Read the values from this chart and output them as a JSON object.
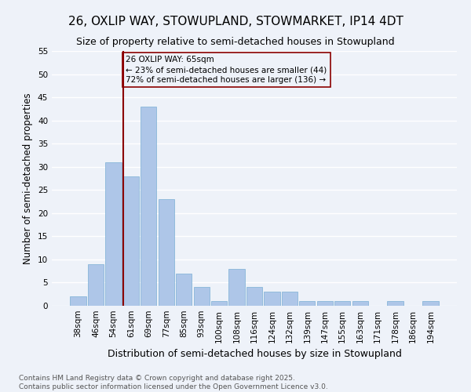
{
  "title": "26, OXLIP WAY, STOWUPLAND, STOWMARKET, IP14 4DT",
  "subtitle": "Size of property relative to semi-detached houses in Stowupland",
  "xlabel": "Distribution of semi-detached houses by size in Stowupland",
  "ylabel": "Number of semi-detached properties",
  "categories": [
    "38sqm",
    "46sqm",
    "54sqm",
    "61sqm",
    "69sqm",
    "77sqm",
    "85sqm",
    "93sqm",
    "100sqm",
    "108sqm",
    "116sqm",
    "124sqm",
    "132sqm",
    "139sqm",
    "147sqm",
    "155sqm",
    "163sqm",
    "171sqm",
    "178sqm",
    "186sqm",
    "194sqm"
  ],
  "values": [
    2,
    9,
    31,
    28,
    43,
    23,
    7,
    4,
    1,
    8,
    4,
    3,
    3,
    1,
    1,
    1,
    1,
    0,
    1,
    0,
    1
  ],
  "bar_color": "#aec6e8",
  "bar_edge_color": "#7bafd4",
  "property_bin_index": 3,
  "property_label": "26 OXLIP WAY: 65sqm",
  "annotation_line1": "← 23% of semi-detached houses are smaller (44)",
  "annotation_line2": "72% of semi-detached houses are larger (136) →",
  "line_color": "#8b0000",
  "annotation_box_color": "#8b0000",
  "ylim": [
    0,
    55
  ],
  "yticks": [
    0,
    5,
    10,
    15,
    20,
    25,
    30,
    35,
    40,
    45,
    50,
    55
  ],
  "footer": "Contains HM Land Registry data © Crown copyright and database right 2025.\nContains public sector information licensed under the Open Government Licence v3.0.",
  "background_color": "#eef2f9",
  "grid_color": "#ffffff",
  "title_fontsize": 11,
  "subtitle_fontsize": 9,
  "axis_label_fontsize": 8.5,
  "tick_fontsize": 7.5,
  "annotation_fontsize": 7.5,
  "footer_fontsize": 6.5
}
